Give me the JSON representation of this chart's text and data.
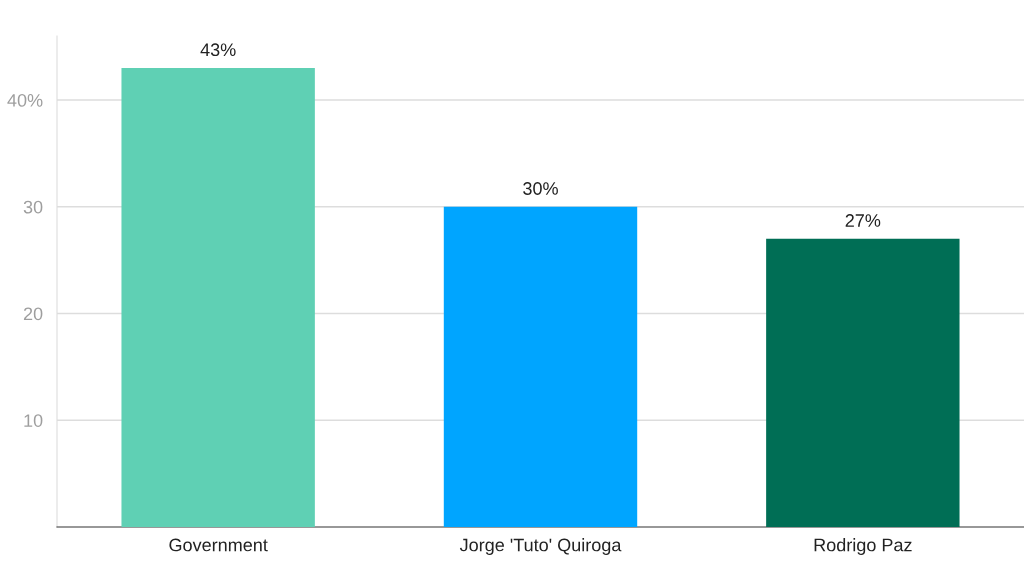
{
  "chart_data": {
    "type": "bar",
    "categories": [
      "Government",
      "Jorge 'Tuto' Quiroga",
      "Rodrigo Paz"
    ],
    "values": [
      43,
      30,
      27
    ],
    "colors": [
      "#5fd0b4",
      "#00a5ff",
      "#006e55"
    ],
    "value_labels": [
      "43%",
      "30%",
      "27%"
    ],
    "ylim": [
      0,
      46
    ],
    "yticks": [
      10,
      20,
      30,
      {
        "value": 40,
        "label": "40%"
      }
    ],
    "grid": "y"
  }
}
